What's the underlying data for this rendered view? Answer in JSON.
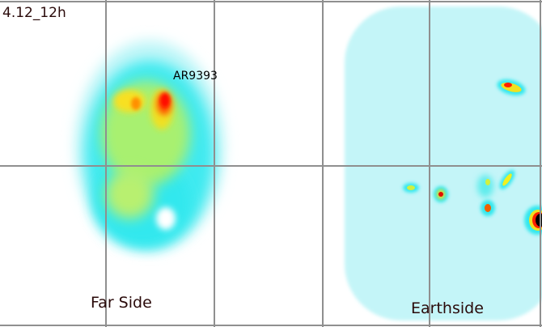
{
  "date_label": "4.12_12h",
  "region_label": "AR9393",
  "far_side_label": "Far Side",
  "earthside_label": "Earthside",
  "colors": {
    "background": "#ffffff",
    "grid": "#8f8f8f",
    "low": "#aef4f6",
    "mid": "#00e8e8",
    "green": "#9af060",
    "yellow": "#f0f020",
    "orange": "#ff9000",
    "red": "#ff1000",
    "peak": "#000000"
  }
}
